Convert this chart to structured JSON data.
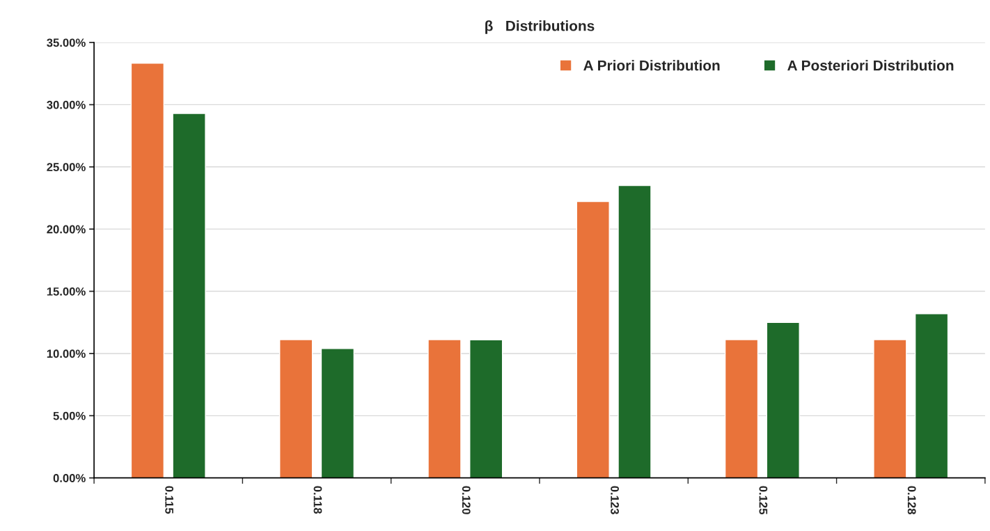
{
  "chart_data": {
    "type": "bar",
    "title": "β   Distributions",
    "categories": [
      "0.115",
      "0.118",
      "0.120",
      "0.123",
      "0.125",
      "0.128"
    ],
    "series": [
      {
        "name": "A Priori Distribution",
        "color": "#e9733a",
        "values": [
          33.33,
          11.11,
          11.11,
          22.22,
          11.11,
          11.11
        ]
      },
      {
        "name": "A Posteriori Distribution",
        "color": "#1e6b2a",
        "values": [
          29.3,
          10.4,
          11.1,
          23.5,
          12.5,
          13.2
        ]
      }
    ],
    "ylim": [
      0,
      35
    ],
    "yticks": [
      {
        "value": 0,
        "label": "0.00%"
      },
      {
        "value": 5,
        "label": "5.00%"
      },
      {
        "value": 10,
        "label": "10.00%"
      },
      {
        "value": 15,
        "label": "15.00%"
      },
      {
        "value": 20,
        "label": "20.00%"
      },
      {
        "value": 25,
        "label": "25.00%"
      },
      {
        "value": 30,
        "label": "30.00%"
      },
      {
        "value": 35,
        "label": "35.00%"
      }
    ],
    "grid": "y",
    "legend": "top right"
  }
}
